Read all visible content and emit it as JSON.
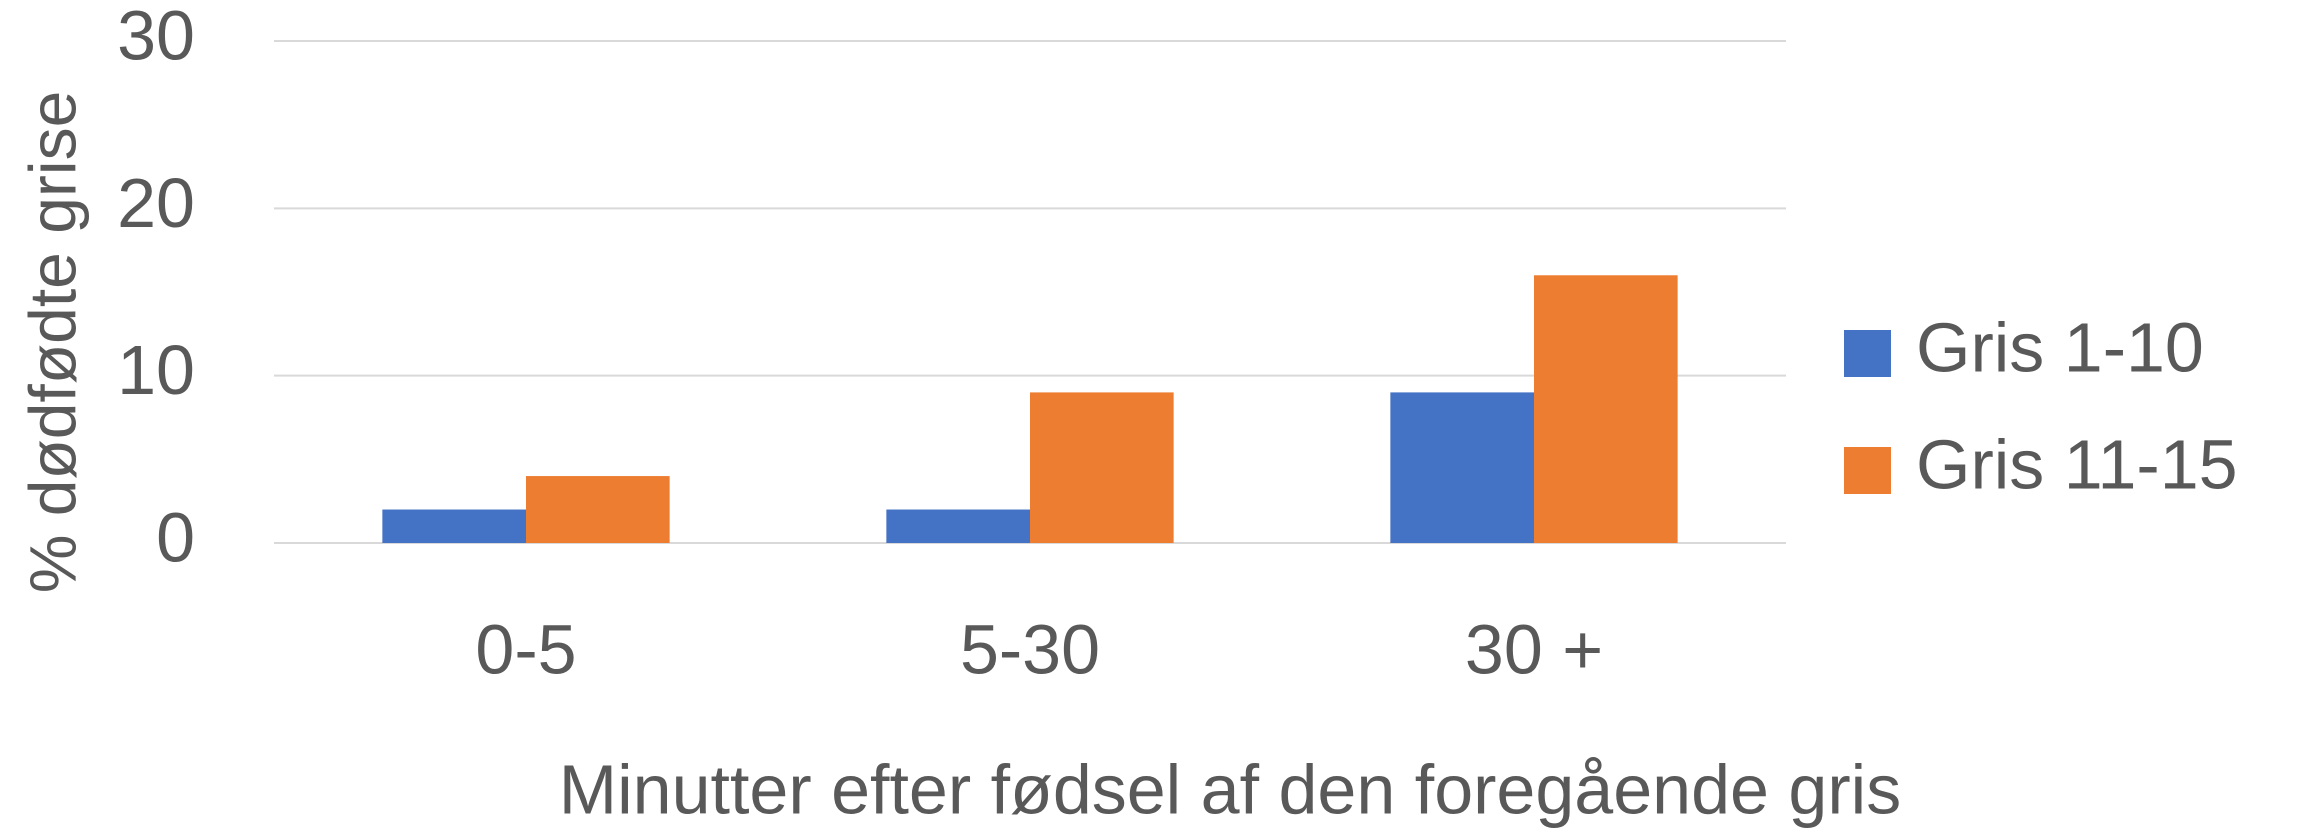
{
  "chart_data": {
    "type": "bar",
    "categories": [
      "0-5",
      "5-30",
      "30 +"
    ],
    "series": [
      {
        "name": "Gris 1-10",
        "color": "#4472c4",
        "values": [
          2,
          2,
          9
        ]
      },
      {
        "name": "Gris 11-15",
        "color": "#ed7d31",
        "values": [
          4,
          9,
          16
        ]
      }
    ],
    "y_label": "% dødfødte grise",
    "x_label": "Minutter efter fødsel af den foregående gris",
    "ylim": [
      0,
      30
    ],
    "yticks": [
      0,
      10,
      20,
      30
    ],
    "grid": true,
    "legend": "right"
  }
}
